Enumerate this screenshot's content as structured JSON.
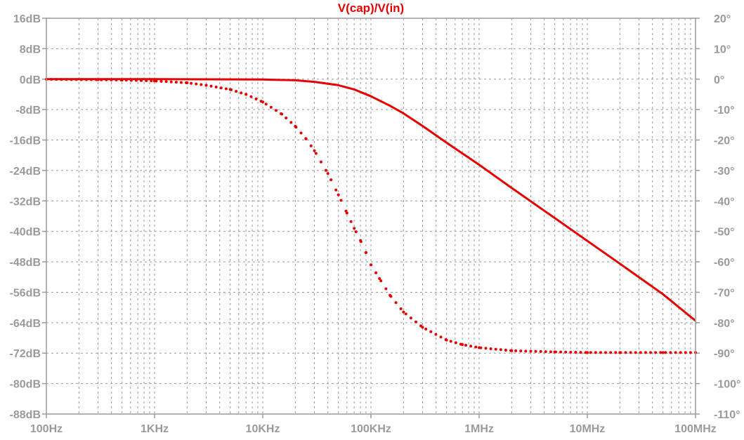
{
  "chart_data": {
    "type": "line",
    "title": "V(cap)/V(in)",
    "x_scale": "log",
    "xlim": [
      100,
      100000000
    ],
    "ylim_left": [
      -88,
      16
    ],
    "ylim_right": [
      -110,
      20
    ],
    "grid": true,
    "x_ticks": [
      {
        "value": 100,
        "label": "100Hz"
      },
      {
        "value": 1000,
        "label": "1KHz"
      },
      {
        "value": 10000,
        "label": "10KHz"
      },
      {
        "value": 100000,
        "label": "100KHz"
      },
      {
        "value": 1000000,
        "label": "1MHz"
      },
      {
        "value": 10000000,
        "label": "10MHz"
      },
      {
        "value": 100000000,
        "label": "100MHz"
      }
    ],
    "y_ticks_left": [
      {
        "value": 16,
        "label": "16dB"
      },
      {
        "value": 8,
        "label": "8dB"
      },
      {
        "value": 0,
        "label": "0dB"
      },
      {
        "value": -8,
        "label": "-8dB"
      },
      {
        "value": -16,
        "label": "-16dB"
      },
      {
        "value": -24,
        "label": "-24dB"
      },
      {
        "value": -32,
        "label": "-32dB"
      },
      {
        "value": -40,
        "label": "-40dB"
      },
      {
        "value": -48,
        "label": "-48dB"
      },
      {
        "value": -56,
        "label": "-56dB"
      },
      {
        "value": -64,
        "label": "-64dB"
      },
      {
        "value": -72,
        "label": "-72dB"
      },
      {
        "value": -80,
        "label": "-80dB"
      },
      {
        "value": -88,
        "label": "-88dB"
      }
    ],
    "y_ticks_right": [
      {
        "value": 20,
        "label": "20°"
      },
      {
        "value": 10,
        "label": "10°"
      },
      {
        "value": 0,
        "label": "0°"
      },
      {
        "value": -10,
        "label": "-10°"
      },
      {
        "value": -20,
        "label": "-20°"
      },
      {
        "value": -30,
        "label": "-30°"
      },
      {
        "value": -40,
        "label": "-40°"
      },
      {
        "value": -50,
        "label": "-50°"
      },
      {
        "value": -60,
        "label": "-60°"
      },
      {
        "value": -70,
        "label": "-70°"
      },
      {
        "value": -80,
        "label": "-80°"
      },
      {
        "value": -90,
        "label": "-90°"
      },
      {
        "value": -100,
        "label": "-100°"
      },
      {
        "value": -110,
        "label": "-110°"
      }
    ],
    "series": [
      {
        "axis": "left",
        "style": "solid",
        "color": "#e60000",
        "x": [
          100,
          1000,
          10000,
          20000,
          30000,
          50000,
          70000,
          100000,
          150000,
          200000,
          300000,
          500000,
          1000000,
          2000000,
          5000000,
          10000000,
          20000000,
          50000000,
          100000000
        ],
        "y": [
          0,
          0,
          -0.1,
          -0.3,
          -0.7,
          -1.6,
          -2.7,
          -4.5,
          -7,
          -9,
          -12.3,
          -16.7,
          -22.5,
          -28.6,
          -36.5,
          -42.5,
          -48.5,
          -56.5,
          -63.5
        ]
      },
      {
        "axis": "right",
        "style": "dotted",
        "color": "#e60000",
        "x": [
          100,
          300,
          500,
          1000,
          2000,
          3000,
          5000,
          7000,
          10000,
          15000,
          20000,
          25000,
          30000,
          40000,
          50000,
          60000,
          70000,
          80000,
          90000,
          100000,
          120000,
          150000,
          200000,
          300000,
          500000,
          700000,
          1000000,
          2000000,
          5000000,
          10000000,
          20000000,
          50000000,
          100000000
        ],
        "y": [
          -0.06,
          -0.2,
          -0.3,
          -0.6,
          -1.2,
          -2,
          -3.4,
          -5,
          -7.5,
          -11.5,
          -15.5,
          -19.5,
          -23.5,
          -31,
          -38,
          -44,
          -49,
          -53,
          -57,
          -61,
          -65.5,
          -71,
          -76.5,
          -81.5,
          -85.7,
          -87.2,
          -88.2,
          -89.2,
          -89.6,
          -89.8,
          -89.8,
          -89.8,
          -89.8
        ]
      }
    ]
  }
}
